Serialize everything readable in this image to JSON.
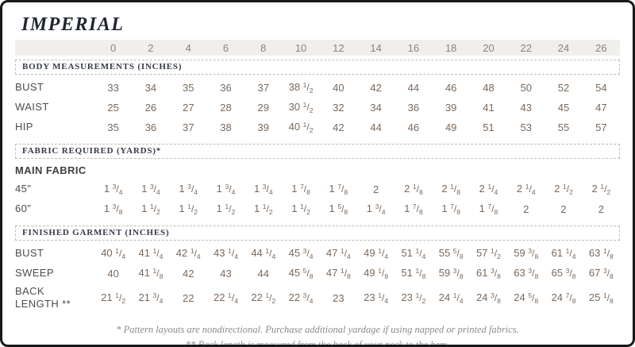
{
  "page": {
    "title": "IMPERIAL"
  },
  "table": {
    "sizes": [
      "0",
      "2",
      "4",
      "6",
      "8",
      "10",
      "12",
      "14",
      "16",
      "18",
      "20",
      "22",
      "24",
      "26"
    ],
    "sections": [
      {
        "heading": "BODY MEASUREMENTS (INCHES)",
        "subheading": null,
        "rows": [
          {
            "label": "BUST",
            "values": [
              "33",
              "34",
              "35",
              "36",
              "37",
              "38 1/2",
              "40",
              "42",
              "44",
              "46",
              "48",
              "50",
              "52",
              "54"
            ]
          },
          {
            "label": "WAIST",
            "values": [
              "25",
              "26",
              "27",
              "28",
              "29",
              "30 1/2",
              "32",
              "34",
              "36",
              "39",
              "41",
              "43",
              "45",
              "47"
            ]
          },
          {
            "label": "HIP",
            "values": [
              "35",
              "36",
              "37",
              "38",
              "39",
              "40 1/2",
              "42",
              "44",
              "46",
              "49",
              "51",
              "53",
              "55",
              "57"
            ]
          }
        ]
      },
      {
        "heading": "FABRIC REQUIRED (YARDS)*",
        "subheading": "MAIN FABRIC",
        "rows": [
          {
            "label": "45\"",
            "values": [
              "1 3/4",
              "1 3/4",
              "1 3/4",
              "1 3/4",
              "1 3/4",
              "1 7/8",
              "1 7/8",
              "2",
              "2 1/8",
              "2 1/8",
              "2 1/4",
              "2 1/4",
              "2 1/2",
              "2 1/2"
            ]
          },
          {
            "label": "60\"",
            "values": [
              "1 3/8",
              "1 1/2",
              "1 1/2",
              "1 1/2",
              "1 1/2",
              "1 1/2",
              "1 5/8",
              "1 3/4",
              "1 7/8",
              "1 7/8",
              "1 7/8",
              "2",
              "2",
              "2"
            ]
          }
        ]
      },
      {
        "heading": "FINISHED GARMENT (INCHES)",
        "subheading": null,
        "rows": [
          {
            "label": "BUST",
            "values": [
              "40 1/4",
              "41 1/4",
              "42 1/4",
              "43 1/4",
              "44 1/4",
              "45 3/4",
              "47 1/4",
              "49 1/4",
              "51 1/4",
              "55 5/8",
              "57 1/2",
              "59 3/8",
              "61 1/4",
              "63 1/8"
            ]
          },
          {
            "label": "SWEEP",
            "values": [
              "40",
              "41 1/8",
              "42",
              "43",
              "44",
              "45 5/8",
              "47 1/8",
              "49 1/8",
              "51 1/8",
              "59 3/8",
              "61 3/8",
              "63 3/8",
              "65 3/8",
              "67 3/8"
            ]
          },
          {
            "label": "BACK LENGTH **",
            "values": [
              "21 1/2",
              "21 3/4",
              "22",
              "22 1/4",
              "22 1/2",
              "22 3/4",
              "23",
              "23 1/4",
              "23 1/2",
              "24 1/4",
              "24 3/8",
              "24 5/8",
              "24 7/8",
              "25 1/8"
            ]
          }
        ]
      }
    ]
  },
  "footnotes": [
    "* Pattern layouts are nondirectional. Purchase additional yardage if using napped or printed fabrics.",
    "** Back length is measured from the back of your neck to the hem."
  ],
  "colors": {
    "frame_border": "#17181a",
    "header_bar_bg": "#f1efec",
    "header_bar_text": "#8c8076",
    "section_heading_text": "#363b49",
    "row_label_text": "#4f4c49",
    "value_text": "#7a685a",
    "footnote_text": "#8b8b8d",
    "title_text": "#20252f",
    "dashed_border": "#c2bcb4"
  }
}
